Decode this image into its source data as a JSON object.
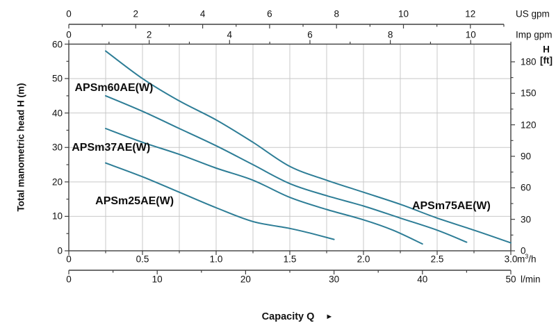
{
  "chart_data": {
    "type": "line",
    "title": "",
    "xlabel": "Capacity Q",
    "ylabel": "Total manometric head H (m)",
    "grid": true,
    "legend_position": "inline-curve-labels",
    "x_range_m3h": [
      0,
      3.0
    ],
    "y_range_m": [
      0,
      60
    ],
    "arrow_glyph": "►",
    "colors": {
      "curve": "#2d7d96",
      "grid": "#c8c8c8",
      "axis": "#3f3f3f",
      "text": "#111111"
    },
    "axes": {
      "us_gpm": {
        "unit": "US gpm",
        "ticks": [
          0,
          2,
          4,
          6,
          8,
          10,
          12
        ],
        "minor_step": 1,
        "max_extent": 13
      },
      "imp_gpm": {
        "unit": "Imp gpm",
        "ticks": [
          0,
          2,
          4,
          6,
          8,
          10
        ],
        "minor_step": 1,
        "max_extent": 11
      },
      "head_m": {
        "ticks": [
          0,
          10,
          20,
          30,
          40,
          50,
          60
        ],
        "minor_step": 5
      },
      "head_ft": {
        "unit_line1": "H",
        "unit_line2": "[ft]",
        "ticks": [
          0,
          30,
          60,
          90,
          120,
          150,
          180
        ],
        "minor_step": 15
      },
      "m3h": {
        "unit_m": "m",
        "unit_sup": "3",
        "unit_h": "/h",
        "tick_labels": [
          "0",
          "0.5",
          "1.0",
          "1.5",
          "2.0",
          "2.5",
          "3.0"
        ],
        "minor_step": 0.25
      },
      "lmin": {
        "unit": "l/min",
        "ticks": [
          0,
          10,
          20,
          30,
          40,
          50
        ],
        "minor_step": 5
      }
    },
    "series": [
      {
        "name": "APSm75AE(W)",
        "label_q": 2.33,
        "label_h": 12.9,
        "points_q_h": [
          [
            0.25,
            58
          ],
          [
            0.5,
            50
          ],
          [
            0.75,
            43.5
          ],
          [
            1.0,
            38
          ],
          [
            1.25,
            31.5
          ],
          [
            1.5,
            24.5
          ],
          [
            1.75,
            20.5
          ],
          [
            2.0,
            17
          ],
          [
            2.25,
            13.5
          ],
          [
            2.5,
            9.5
          ],
          [
            2.75,
            6
          ],
          [
            3.0,
            2.3
          ]
        ]
      },
      {
        "name": "APSm60AE(W)",
        "label_q": 0.04,
        "label_h": 47.2,
        "points_q_h": [
          [
            0.25,
            45
          ],
          [
            0.5,
            40.5
          ],
          [
            0.75,
            35.5
          ],
          [
            1.0,
            30.5
          ],
          [
            1.25,
            25
          ],
          [
            1.5,
            19.5
          ],
          [
            1.75,
            16
          ],
          [
            2.0,
            13
          ],
          [
            2.25,
            9.5
          ],
          [
            2.5,
            6
          ],
          [
            2.7,
            2.5
          ]
        ]
      },
      {
        "name": "APSm37AE(W)",
        "label_q": 0.02,
        "label_h": 29.8,
        "points_q_h": [
          [
            0.25,
            35.5
          ],
          [
            0.5,
            31.5
          ],
          [
            0.75,
            28
          ],
          [
            1.0,
            24
          ],
          [
            1.25,
            20.5
          ],
          [
            1.5,
            15.5
          ],
          [
            1.75,
            12
          ],
          [
            2.0,
            9
          ],
          [
            2.2,
            6
          ],
          [
            2.4,
            2
          ]
        ]
      },
      {
        "name": "APSm25AE(W)",
        "label_q": 0.18,
        "label_h": 14.3,
        "points_q_h": [
          [
            0.25,
            25.5
          ],
          [
            0.5,
            21.5
          ],
          [
            0.75,
            17
          ],
          [
            1.0,
            12.5
          ],
          [
            1.25,
            8.5
          ],
          [
            1.5,
            6.5
          ],
          [
            1.65,
            5
          ],
          [
            1.8,
            3.3
          ]
        ]
      }
    ]
  }
}
